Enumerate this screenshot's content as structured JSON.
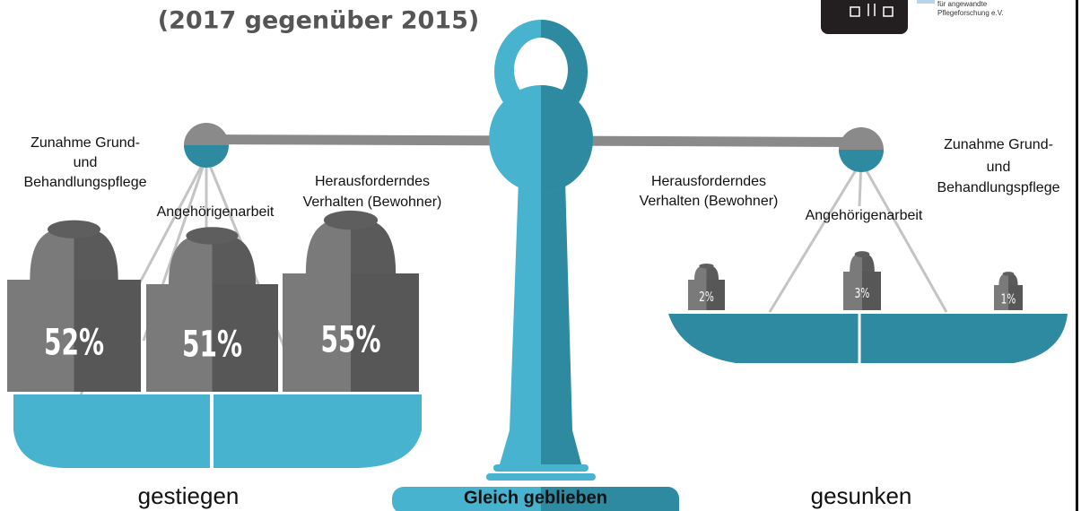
{
  "header": {
    "title": "(2017 gegenüber 2015)"
  },
  "logo": {
    "lines": [
      "für angewandte",
      "Pflegeforschung e.V."
    ]
  },
  "left": {
    "caption": "gestiegen",
    "items": [
      {
        "label": [
          "Zunahme Grund-",
          "und",
          "Behandlungspflege"
        ],
        "weight": "52%"
      },
      {
        "label": [
          "Angehörigenarbeit"
        ],
        "weight": "51%"
      },
      {
        "label": [
          "Herausforderndes",
          "Verhalten (Bewohner)"
        ],
        "weight": "55%"
      }
    ]
  },
  "center": {
    "caption": "Gleich geblieben"
  },
  "right": {
    "caption": "gesunken",
    "items": [
      {
        "label": [
          "Herausforderndes",
          "Verhalten (Bewohner)"
        ],
        "weight": "2%"
      },
      {
        "label": [
          "Angehörigenarbeit"
        ],
        "weight": "3%"
      },
      {
        "label": [
          "Zunahme Grund-",
          "und",
          "Behandlungspflege"
        ],
        "weight": "1%"
      }
    ]
  }
}
